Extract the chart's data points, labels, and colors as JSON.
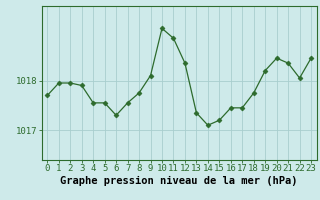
{
  "x": [
    0,
    1,
    2,
    3,
    4,
    5,
    6,
    7,
    8,
    9,
    10,
    11,
    12,
    13,
    14,
    15,
    16,
    17,
    18,
    19,
    20,
    21,
    22,
    23
  ],
  "y": [
    1017.7,
    1017.95,
    1017.95,
    1017.9,
    1017.55,
    1017.55,
    1017.3,
    1017.55,
    1017.75,
    1018.1,
    1019.05,
    1018.85,
    1018.35,
    1017.35,
    1017.1,
    1017.2,
    1017.45,
    1017.45,
    1017.75,
    1018.2,
    1018.45,
    1018.35,
    1018.05,
    1018.45
  ],
  "line_color": "#2d6b2d",
  "marker_color": "#2d6b2d",
  "bg_color": "#ceeaea",
  "grid_color": "#a8cece",
  "ylabel_ticks": [
    1017,
    1018
  ],
  "xlabel": "Graphe pression niveau de la mer (hPa)",
  "ylim_min": 1016.4,
  "ylim_max": 1019.5,
  "axis_label_fontsize": 7.5,
  "tick_fontsize": 6.5
}
